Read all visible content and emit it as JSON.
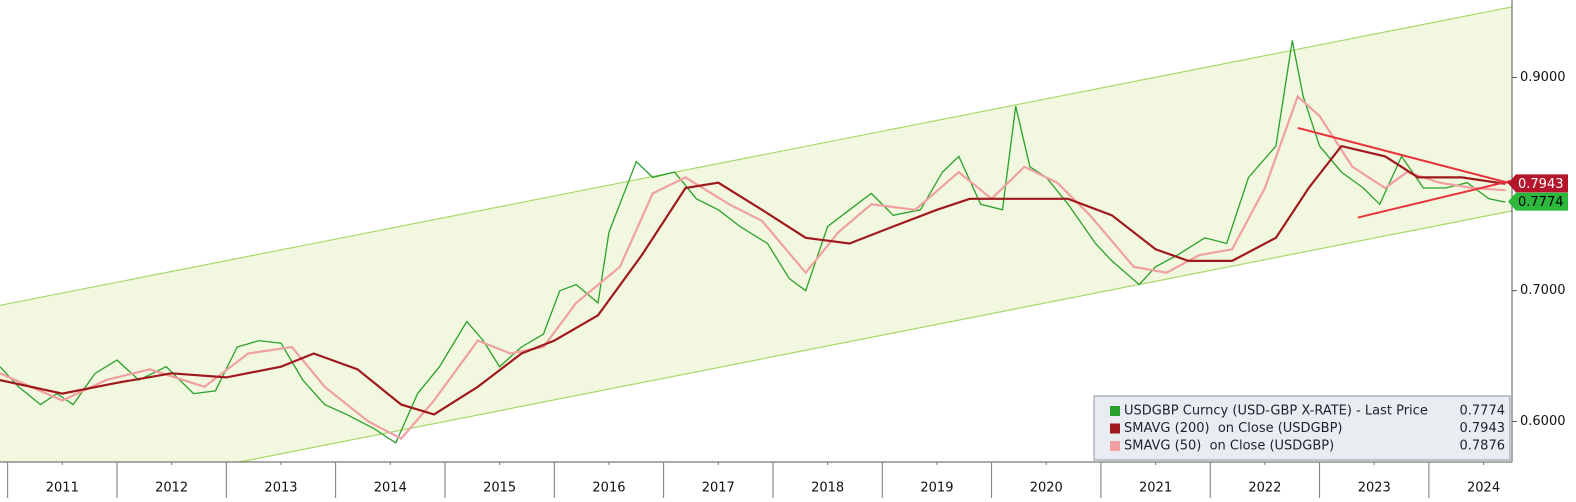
{
  "chart_data": {
    "type": "line",
    "log_scale": true,
    "xlim": [
      2010.93,
      2024.76
    ],
    "ylim": [
      0.572,
      0.986
    ],
    "xticks": [
      {
        "value": 2011.5,
        "label": "2011"
      },
      {
        "value": 2012.5,
        "label": "2012"
      },
      {
        "value": 2013.5,
        "label": "2013"
      },
      {
        "value": 2014.5,
        "label": "2014"
      },
      {
        "value": 2015.5,
        "label": "2015"
      },
      {
        "value": 2016.5,
        "label": "2016"
      },
      {
        "value": 2017.5,
        "label": "2017"
      },
      {
        "value": 2018.5,
        "label": "2018"
      },
      {
        "value": 2019.5,
        "label": "2019"
      },
      {
        "value": 2020.5,
        "label": "2020"
      },
      {
        "value": 2021.5,
        "label": "2021"
      },
      {
        "value": 2022.5,
        "label": "2022"
      },
      {
        "value": 2023.5,
        "label": "2023"
      },
      {
        "value": 2024.5,
        "label": "2024"
      }
    ],
    "yticks": [
      {
        "value": 0.6,
        "label": "0.6000"
      },
      {
        "value": 0.7,
        "label": "0.7000"
      },
      {
        "value": 0.9,
        "label": "0.9000"
      }
    ],
    "series": [
      {
        "name": "USDGBP Curncy (USD-GBP X-RATE) - Last Price",
        "color": "#2ca02c",
        "last_value": 0.7774,
        "tag_color": "#2db83d",
        "x": [
          2010.93,
          2011.1,
          2011.3,
          2011.45,
          2011.6,
          2011.8,
          2012.0,
          2012.2,
          2012.45,
          2012.7,
          2012.9,
          2013.1,
          2013.3,
          2013.5,
          2013.7,
          2013.9,
          2014.1,
          2014.35,
          2014.55,
          2014.75,
          2014.95,
          2015.2,
          2015.35,
          2015.5,
          2015.7,
          2015.9,
          2016.05,
          2016.2,
          2016.4,
          2016.5,
          2016.75,
          2016.9,
          2017.1,
          2017.3,
          2017.5,
          2017.7,
          2017.95,
          2018.15,
          2018.3,
          2018.5,
          2018.7,
          2018.9,
          2019.1,
          2019.35,
          2019.55,
          2019.7,
          2019.9,
          2020.1,
          2020.22,
          2020.35,
          2020.5,
          2020.7,
          2020.95,
          2021.1,
          2021.35,
          2021.5,
          2021.7,
          2021.95,
          2022.15,
          2022.35,
          2022.6,
          2022.75,
          2022.85,
          2023.0,
          2023.2,
          2023.4,
          2023.55,
          2023.75,
          2023.95,
          2024.15,
          2024.35,
          2024.55,
          2024.7
        ],
        "values": [
          0.64,
          0.625,
          0.612,
          0.62,
          0.612,
          0.635,
          0.645,
          0.63,
          0.64,
          0.62,
          0.622,
          0.655,
          0.66,
          0.658,
          0.63,
          0.612,
          0.605,
          0.595,
          0.585,
          0.62,
          0.64,
          0.675,
          0.66,
          0.64,
          0.655,
          0.665,
          0.7,
          0.705,
          0.69,
          0.75,
          0.815,
          0.8,
          0.805,
          0.78,
          0.77,
          0.755,
          0.74,
          0.71,
          0.7,
          0.755,
          0.77,
          0.785,
          0.765,
          0.77,
          0.805,
          0.82,
          0.775,
          0.77,
          0.87,
          0.81,
          0.8,
          0.775,
          0.74,
          0.725,
          0.705,
          0.72,
          0.73,
          0.745,
          0.74,
          0.8,
          0.83,
          0.94,
          0.88,
          0.83,
          0.805,
          0.79,
          0.775,
          0.82,
          0.79,
          0.79,
          0.795,
          0.78,
          0.777
        ]
      },
      {
        "name": "SMAVG (200)  on Close (USDGBP)",
        "color": "#a0191e",
        "last_value": 0.7943,
        "tag_color": "#b5152b",
        "x": [
          2010.93,
          2011.5,
          2012.0,
          2012.5,
          2013.0,
          2013.5,
          2013.8,
          2014.2,
          2014.6,
          2014.9,
          2015.3,
          2015.7,
          2016.0,
          2016.4,
          2016.8,
          2017.2,
          2017.5,
          2017.9,
          2018.3,
          2018.7,
          2019.1,
          2019.5,
          2019.8,
          2020.3,
          2020.7,
          2021.1,
          2021.5,
          2021.8,
          2022.2,
          2022.6,
          2022.9,
          2023.2,
          2023.6,
          2023.9,
          2024.3,
          2024.7
        ],
        "values": [
          0.63,
          0.62,
          0.628,
          0.635,
          0.632,
          0.64,
          0.65,
          0.638,
          0.612,
          0.605,
          0.625,
          0.65,
          0.66,
          0.68,
          0.73,
          0.79,
          0.795,
          0.77,
          0.745,
          0.74,
          0.755,
          0.77,
          0.78,
          0.78,
          0.78,
          0.765,
          0.735,
          0.725,
          0.725,
          0.745,
          0.79,
          0.83,
          0.82,
          0.8,
          0.8,
          0.794
        ]
      },
      {
        "name": "SMAVG (50)  on Close (USDGBP)",
        "color": "#f0a0a0",
        "last_value": 0.7876,
        "x": [
          2010.93,
          2011.5,
          2011.9,
          2012.3,
          2012.8,
          2013.2,
          2013.6,
          2013.9,
          2014.3,
          2014.6,
          2014.9,
          2015.3,
          2015.6,
          2015.9,
          2016.2,
          2016.6,
          2016.9,
          2017.2,
          2017.6,
          2017.9,
          2018.3,
          2018.6,
          2018.9,
          2019.3,
          2019.7,
          2020.0,
          2020.3,
          2020.6,
          2020.9,
          2021.3,
          2021.6,
          2021.9,
          2022.2,
          2022.5,
          2022.8,
          2023.0,
          2023.3,
          2023.6,
          2023.8,
          2024.1,
          2024.4,
          2024.7
        ],
        "values": [
          0.635,
          0.615,
          0.63,
          0.638,
          0.625,
          0.65,
          0.655,
          0.625,
          0.6,
          0.588,
          0.615,
          0.66,
          0.65,
          0.655,
          0.69,
          0.72,
          0.785,
          0.8,
          0.775,
          0.76,
          0.715,
          0.75,
          0.775,
          0.77,
          0.805,
          0.78,
          0.81,
          0.795,
          0.765,
          0.72,
          0.715,
          0.73,
          0.735,
          0.79,
          0.88,
          0.86,
          0.81,
          0.79,
          0.805,
          0.795,
          0.79,
          0.788
        ]
      }
    ],
    "channel": {
      "color": "#a8d86a",
      "fill": "#f1f8df",
      "upper": {
        "x": [
          2010.93,
          2024.76
        ],
        "y": [
          0.688,
          0.978
        ]
      },
      "lower": {
        "x": [
          2010.93,
          2024.76
        ],
        "y": [
          0.541,
          0.769
        ]
      }
    },
    "trend_lines": [
      {
        "color": "#e8333a",
        "x": [
          2022.8,
          2024.76
        ],
        "y": [
          0.848,
          0.794
        ]
      },
      {
        "color": "#e8333a",
        "x": [
          2023.35,
          2024.76
        ],
        "y": [
          0.763,
          0.797
        ]
      }
    ]
  }
}
